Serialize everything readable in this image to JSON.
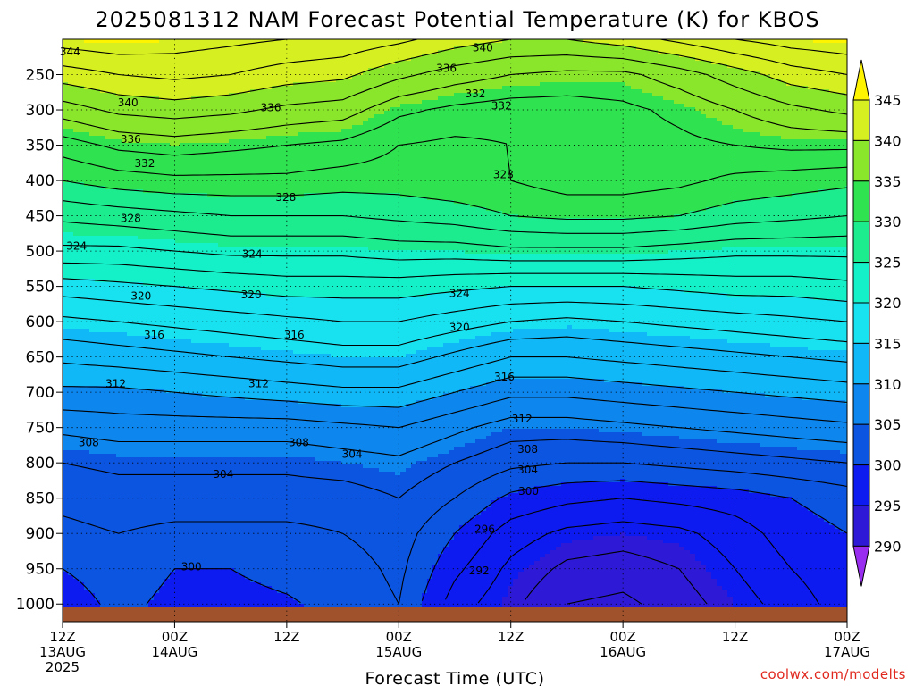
{
  "page": {
    "title": "2025081312 NAM Forecast Potential Temperature (K) for KBOS",
    "credit": "coolwx.com/modelts"
  },
  "chart_data": {
    "type": "heatmap",
    "title": "2025081312 NAM Forecast Potential Temperature (K) for KBOS",
    "xlabel": "Forecast Time (UTC)",
    "ylabel": "",
    "x_ticks": [
      {
        "hour": 0,
        "labels": [
          "12Z",
          "13AUG",
          "2025"
        ]
      },
      {
        "hour": 12,
        "labels": [
          "00Z",
          "14AUG"
        ]
      },
      {
        "hour": 24,
        "labels": [
          "12Z"
        ]
      },
      {
        "hour": 36,
        "labels": [
          "00Z",
          "15AUG"
        ]
      },
      {
        "hour": 48,
        "labels": [
          "12Z"
        ]
      },
      {
        "hour": 60,
        "labels": [
          "00Z",
          "16AUG"
        ]
      },
      {
        "hour": 72,
        "labels": [
          "12Z"
        ]
      },
      {
        "hour": 84,
        "labels": [
          "00Z",
          "17AUG"
        ]
      }
    ],
    "x_range_hours": [
      0,
      84
    ],
    "y_axis": "pressure (hPa), reversed",
    "y_range": [
      1025,
      200
    ],
    "y_ticks": [
      250,
      300,
      350,
      400,
      450,
      500,
      550,
      600,
      650,
      700,
      750,
      800,
      850,
      900,
      950,
      1000
    ],
    "grid": true,
    "colorbar": {
      "levels": [
        290,
        295,
        300,
        305,
        310,
        315,
        320,
        325,
        330,
        335,
        340,
        345
      ],
      "colors": [
        "#9a2ef0",
        "#2e1ad6",
        "#0d1af0",
        "#0c55e0",
        "#0d86ee",
        "#10b8f7",
        "#18e2f0",
        "#14f0c8",
        "#1cec8e",
        "#2fe24f",
        "#8ae62a",
        "#d6ef20",
        "#fff400"
      ],
      "placement": "right"
    },
    "hours": [
      0,
      6,
      12,
      18,
      24,
      30,
      36,
      42,
      48,
      54,
      60,
      66,
      72,
      78,
      84
    ],
    "pressure_levels": [
      1000,
      950,
      900,
      850,
      800,
      750,
      700,
      650,
      600,
      550,
      500,
      450,
      400,
      350,
      300,
      250,
      200
    ],
    "values": [
      [
        299.0,
        300.5,
        299.5,
        299.5,
        299.8,
        300.5,
        302.0,
        297.0,
        294.5,
        292.0,
        291.5,
        293.0,
        295.0,
        297.0,
        299.0
      ],
      [
        300.0,
        301.0,
        300.0,
        300.0,
        300.5,
        301.0,
        302.5,
        298.5,
        295.5,
        293.5,
        293.0,
        294.0,
        296.0,
        298.0,
        299.5
      ],
      [
        301.5,
        302.0,
        301.5,
        301.5,
        301.5,
        302.0,
        303.0,
        300.0,
        297.0,
        295.5,
        295.0,
        295.5,
        297.0,
        299.0,
        300.0
      ],
      [
        302.5,
        303.0,
        303.0,
        303.0,
        303.0,
        303.0,
        304.0,
        302.0,
        299.5,
        298.5,
        298.0,
        298.5,
        299.0,
        300.0,
        301.0
      ],
      [
        304.0,
        304.5,
        304.5,
        304.5,
        304.5,
        305.0,
        305.5,
        304.0,
        302.5,
        302.0,
        302.0,
        302.5,
        303.0,
        303.5,
        304.0
      ],
      [
        306.5,
        307.0,
        307.0,
        307.0,
        307.0,
        307.5,
        308.0,
        306.5,
        305.0,
        305.0,
        305.5,
        306.0,
        306.5,
        307.0,
        307.5
      ],
      [
        309.5,
        309.5,
        310.0,
        310.5,
        311.0,
        311.5,
        311.5,
        310.0,
        308.5,
        308.5,
        309.0,
        309.5,
        310.0,
        310.5,
        311.0
      ],
      [
        312.5,
        313.0,
        313.5,
        314.0,
        314.5,
        315.0,
        315.0,
        313.5,
        312.0,
        312.0,
        312.5,
        313.0,
        313.5,
        314.0,
        314.5
      ],
      [
        315.5,
        316.0,
        316.5,
        317.0,
        317.5,
        318.0,
        318.0,
        317.0,
        316.0,
        315.5,
        316.0,
        316.5,
        317.0,
        317.5,
        318.0
      ],
      [
        319.0,
        319.5,
        320.0,
        320.5,
        321.0,
        321.0,
        321.0,
        320.5,
        320.0,
        320.0,
        320.0,
        320.5,
        321.0,
        321.0,
        321.5
      ],
      [
        323.5,
        323.5,
        324.0,
        324.5,
        324.5,
        324.5,
        325.0,
        325.0,
        325.5,
        325.5,
        325.5,
        325.0,
        324.5,
        324.5,
        324.5
      ],
      [
        326.5,
        327.0,
        327.5,
        328.0,
        328.0,
        328.0,
        328.5,
        329.0,
        330.0,
        330.5,
        330.5,
        330.0,
        329.0,
        328.5,
        328.0
      ],
      [
        330.0,
        331.0,
        331.5,
        331.5,
        331.5,
        331.0,
        331.0,
        331.5,
        332.0,
        333.0,
        333.0,
        332.5,
        331.5,
        331.0,
        330.5
      ],
      [
        333.0,
        334.5,
        335.0,
        334.5,
        334.0,
        333.5,
        332.0,
        331.5,
        332.0,
        332.5,
        333.0,
        333.5,
        334.0,
        334.5,
        334.5
      ],
      [
        337.0,
        338.5,
        339.0,
        338.5,
        337.5,
        337.0,
        334.5,
        333.5,
        333.0,
        333.0,
        333.5,
        334.5,
        336.0,
        337.5,
        338.5
      ],
      [
        341.0,
        342.0,
        342.5,
        342.0,
        341.0,
        340.5,
        338.5,
        337.0,
        336.0,
        335.5,
        335.5,
        337.0,
        339.0,
        341.0,
        342.0
      ],
      [
        345.0,
        345.5,
        345.0,
        344.5,
        344.0,
        343.5,
        342.5,
        341.0,
        340.0,
        340.0,
        341.0,
        342.5,
        344.0,
        345.0,
        345.5
      ]
    ],
    "contour_interval": 2,
    "contour_labels": [
      {
        "text": "344",
        "hour": 0.8,
        "p": 218
      },
      {
        "text": "340",
        "hour": 7.0,
        "p": 290
      },
      {
        "text": "336",
        "hour": 7.3,
        "p": 342
      },
      {
        "text": "332",
        "hour": 8.8,
        "p": 376
      },
      {
        "text": "328",
        "hour": 7.3,
        "p": 454
      },
      {
        "text": "324",
        "hour": 1.5,
        "p": 493
      },
      {
        "text": "320",
        "hour": 8.4,
        "p": 564
      },
      {
        "text": "316",
        "hour": 9.8,
        "p": 619
      },
      {
        "text": "312",
        "hour": 5.7,
        "p": 688
      },
      {
        "text": "308",
        "hour": 2.8,
        "p": 771
      },
      {
        "text": "304",
        "hour": 17.2,
        "p": 816
      },
      {
        "text": "300",
        "hour": 13.8,
        "p": 947
      },
      {
        "text": "340",
        "hour": 45.0,
        "p": 212
      },
      {
        "text": "336",
        "hour": 41.1,
        "p": 241
      },
      {
        "text": "336",
        "hour": 22.3,
        "p": 297
      },
      {
        "text": "332",
        "hour": 47.0,
        "p": 294
      },
      {
        "text": "328",
        "hour": 23.9,
        "p": 424
      },
      {
        "text": "324",
        "hour": 20.3,
        "p": 504
      },
      {
        "text": "320",
        "hour": 20.2,
        "p": 562
      },
      {
        "text": "316",
        "hour": 24.8,
        "p": 619
      },
      {
        "text": "312",
        "hour": 21.0,
        "p": 688
      },
      {
        "text": "308",
        "hour": 25.3,
        "p": 771
      },
      {
        "text": "304",
        "hour": 31.0,
        "p": 788
      },
      {
        "text": "332",
        "hour": 44.2,
        "p": 277
      },
      {
        "text": "328",
        "hour": 47.2,
        "p": 392
      },
      {
        "text": "324",
        "hour": 42.5,
        "p": 560
      },
      {
        "text": "320",
        "hour": 42.5,
        "p": 608
      },
      {
        "text": "316",
        "hour": 47.3,
        "p": 678
      },
      {
        "text": "312",
        "hour": 49.2,
        "p": 738
      },
      {
        "text": "308",
        "hour": 49.8,
        "p": 781
      },
      {
        "text": "304",
        "hour": 49.8,
        "p": 810
      },
      {
        "text": "300",
        "hour": 49.9,
        "p": 840
      },
      {
        "text": "296",
        "hour": 45.2,
        "p": 894
      },
      {
        "text": "292",
        "hour": 44.6,
        "p": 953
      }
    ],
    "ground_color": "#a0522d"
  }
}
